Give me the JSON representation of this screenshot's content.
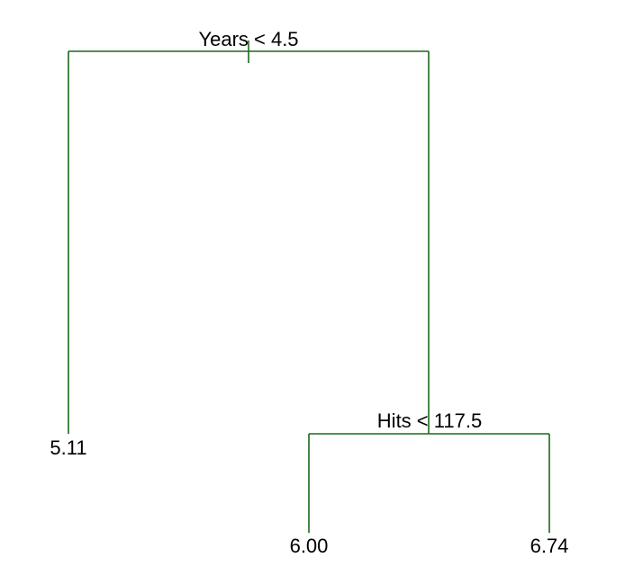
{
  "tree": {
    "branch_color": "#1a6b1a",
    "root_split": {
      "label": "Years < 4.5"
    },
    "right_split": {
      "label": "Hits < 117.5"
    },
    "leaves": {
      "left": "5.11",
      "right_left": "6.00",
      "right_right": "6.74"
    }
  }
}
